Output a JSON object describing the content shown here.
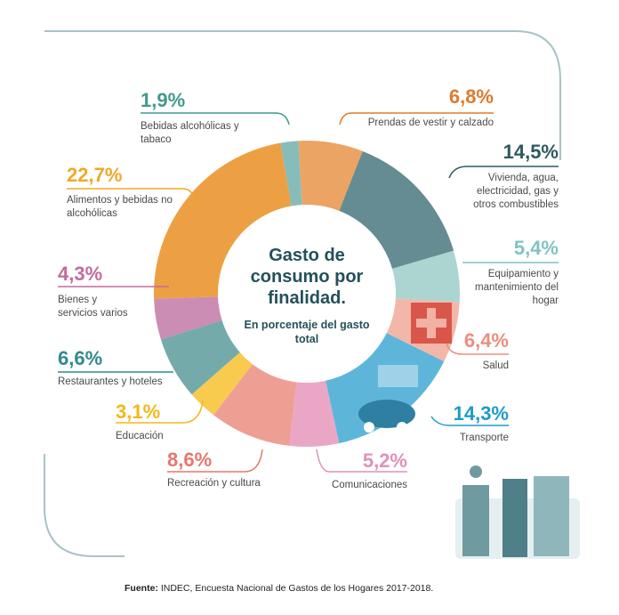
{
  "title": "Gasto de consumo por finalidad.",
  "subtitle": "En porcentaje del gasto total",
  "source_label": "Fuente:",
  "source_text": "INDEC, Encuesta Nacional de Gastos de los Hogares 2017-2018.",
  "chart_data": {
    "type": "pie",
    "title": "Gasto de consumo por finalidad.",
    "subtitle": "En porcentaje del gasto total",
    "unit": "%",
    "slices": [
      {
        "label": "Bebidas alcohólicas y tabaco",
        "value": 1.9,
        "display": "1,9%",
        "color": "#86bdb9",
        "text_color": "#3f9a8a"
      },
      {
        "label": "Prendas de vestir y calzado",
        "value": 6.8,
        "display": "6,8%",
        "color": "#eba463",
        "text_color": "#e07a2a"
      },
      {
        "label": "Vivienda, agua, electricidad, gas y otros combustibles",
        "value": 14.5,
        "display": "14,5%",
        "color": "#648c92",
        "text_color": "#2d5a62"
      },
      {
        "label": "Equipamiento y mantenimiento del hogar",
        "value": 5.4,
        "display": "5,4%",
        "color": "#acd5d2",
        "text_color": "#7fc3c0"
      },
      {
        "label": "Salud",
        "value": 6.4,
        "display": "6,4%",
        "color": "#f3b7aa",
        "text_color": "#ea8e7d"
      },
      {
        "label": "Transporte",
        "value": 14.3,
        "display": "14,3%",
        "color": "#5db6da",
        "text_color": "#1d9bc8"
      },
      {
        "label": "Comunicaciones",
        "value": 5.2,
        "display": "5,2%",
        "color": "#eaa7c5",
        "text_color": "#e091b8"
      },
      {
        "label": "Recreación y cultura",
        "value": 8.6,
        "display": "8,6%",
        "color": "#ee9f94",
        "text_color": "#e5776c"
      },
      {
        "label": "Educación",
        "value": 3.1,
        "display": "3,1%",
        "color": "#f8ca4e",
        "text_color": "#f2b81c"
      },
      {
        "label": "Restaurantes y hoteles",
        "value": 6.6,
        "display": "6,6%",
        "color": "#74abaa",
        "text_color": "#2f8a8c"
      },
      {
        "label": "Bienes y servicios varios",
        "value": 4.3,
        "display": "4,3%",
        "color": "#cb8db3",
        "text_color": "#c46a9c"
      },
      {
        "label": "Alimentos y bebidas no alcohólicas",
        "value": 22.7,
        "display": "22,7%",
        "color": "#eda043",
        "text_color": "#f0a928"
      }
    ]
  }
}
